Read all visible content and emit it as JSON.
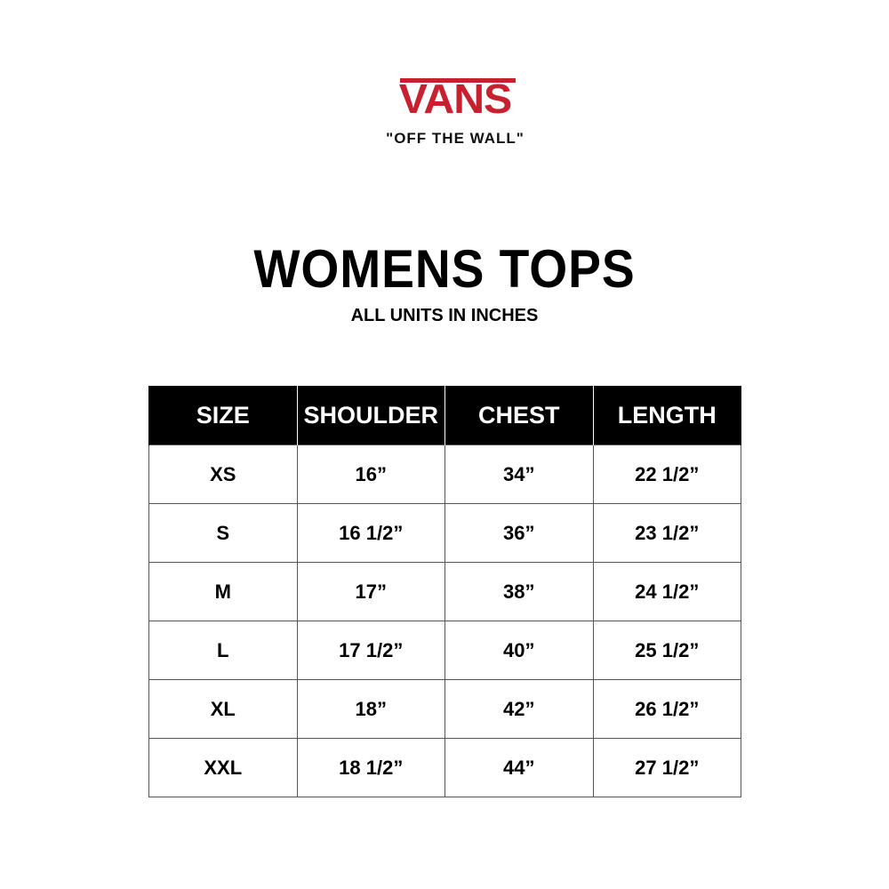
{
  "brand": {
    "logo_text": "VANS",
    "tagline": "\"OFF THE WALL\"",
    "color": "#c8202f"
  },
  "title": "WOMENS TOPS",
  "subtitle": "ALL UNITS IN INCHES",
  "table": {
    "headers": [
      "SIZE",
      "SHOULDER",
      "CHEST",
      "LENGTH"
    ],
    "rows": [
      [
        "XS",
        "16”",
        "34”",
        "22 1/2”"
      ],
      [
        "S",
        "16 1/2”",
        "36”",
        "23 1/2”"
      ],
      [
        "M",
        "17”",
        "38”",
        "24 1/2”"
      ],
      [
        "L",
        "17 1/2”",
        "40”",
        "25 1/2”"
      ],
      [
        "XL",
        "18”",
        "42”",
        "26 1/2”"
      ],
      [
        "XXL",
        "18 1/2”",
        "44”",
        "27 1/2”"
      ]
    ]
  }
}
